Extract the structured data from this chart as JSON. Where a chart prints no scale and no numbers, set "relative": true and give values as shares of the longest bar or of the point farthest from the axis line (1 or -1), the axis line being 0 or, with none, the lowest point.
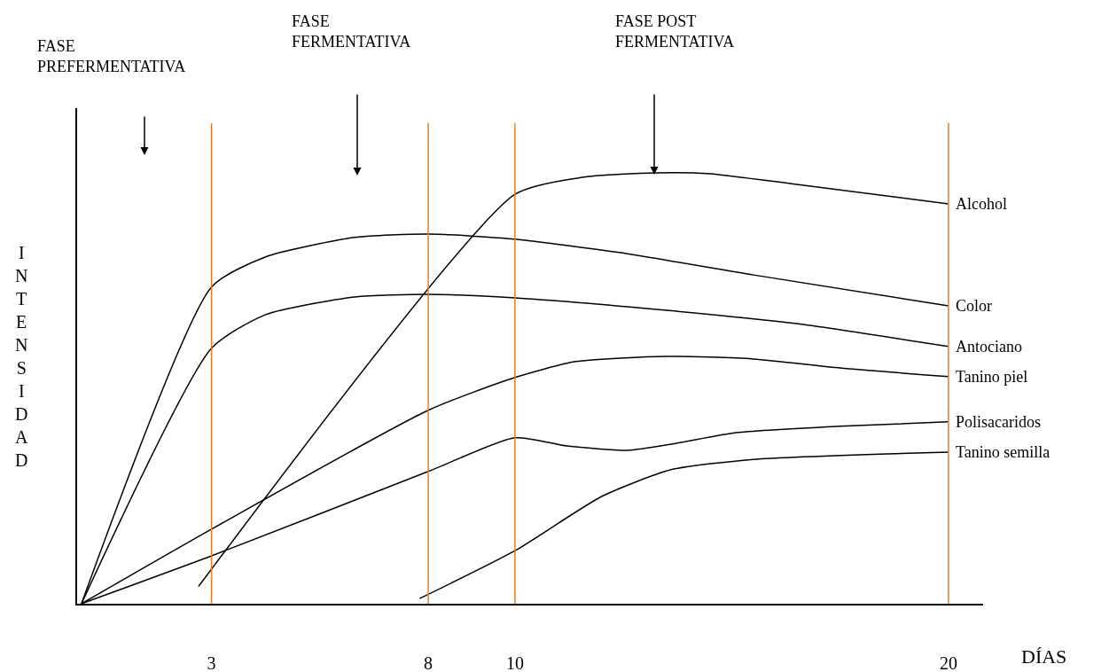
{
  "chart_data": {
    "type": "line",
    "relative": true,
    "xlabel": "DÍAS",
    "ylabel": "INTENSIDAD",
    "xlim": [
      -0.1,
      20.8
    ],
    "xticks": [
      3,
      8,
      10,
      20
    ],
    "grid": false,
    "legend": false,
    "marker": "none",
    "line_style": "solid",
    "series": [
      {
        "name": "Alcohol",
        "color": "#000000",
        "x": [
          2.7,
          10,
          11.6,
          13.25,
          14.5,
          16.5,
          20
        ],
        "values": [
          0.04,
          0.95,
          0.99,
          1.0,
          0.998,
          0.973,
          0.928
        ]
      },
      {
        "name": "Color",
        "color": "#000000",
        "x": [
          0,
          3,
          4.25,
          6.3,
          8,
          10,
          12.4,
          15.5,
          20
        ],
        "values": [
          0,
          0.735,
          0.805,
          0.85,
          0.858,
          0.846,
          0.815,
          0.763,
          0.691
        ]
      },
      {
        "name": "Antociano",
        "color": "#000000",
        "x": [
          0,
          3,
          4.25,
          6.3,
          8,
          10,
          13.5,
          16.5,
          20
        ],
        "values": [
          0,
          0.593,
          0.671,
          0.712,
          0.718,
          0.71,
          0.681,
          0.65,
          0.597
        ]
      },
      {
        "name": "Tanino piel",
        "color": "#000000",
        "x": [
          0,
          3,
          8,
          10,
          11.4,
          13.5,
          15.5,
          17.5,
          20
        ],
        "values": [
          0,
          0.173,
          0.449,
          0.525,
          0.562,
          0.574,
          0.568,
          0.547,
          0.527
        ]
      },
      {
        "name": "Polisacaridos",
        "color": "#000000",
        "x": [
          0,
          3,
          8,
          10,
          11.2,
          12.6,
          13.7,
          15.1,
          17.5,
          20
        ],
        "values": [
          0,
          0.111,
          0.307,
          0.385,
          0.366,
          0.356,
          0.372,
          0.397,
          0.412,
          0.422
        ]
      },
      {
        "name": "Tanino semilla",
        "color": "#000000",
        "x": [
          7.8,
          10,
          12,
          13.6,
          15.5,
          20
        ],
        "values": [
          0.012,
          0.123,
          0.249,
          0.311,
          0.335,
          0.352
        ]
      }
    ],
    "ref_lines": [
      {
        "axis": "x",
        "value": 3,
        "color": "#f07b22"
      },
      {
        "axis": "x",
        "value": 8,
        "color": "#f07b22"
      },
      {
        "axis": "x",
        "value": 10,
        "color": "#f07b22"
      },
      {
        "axis": "x",
        "value": 20,
        "color": "#f07b22"
      }
    ],
    "annotations": [
      "FASE PREFERMENTATIVA",
      "FASE FERMENTATIVA",
      "FASE POST FERMENTATIVA"
    ]
  }
}
